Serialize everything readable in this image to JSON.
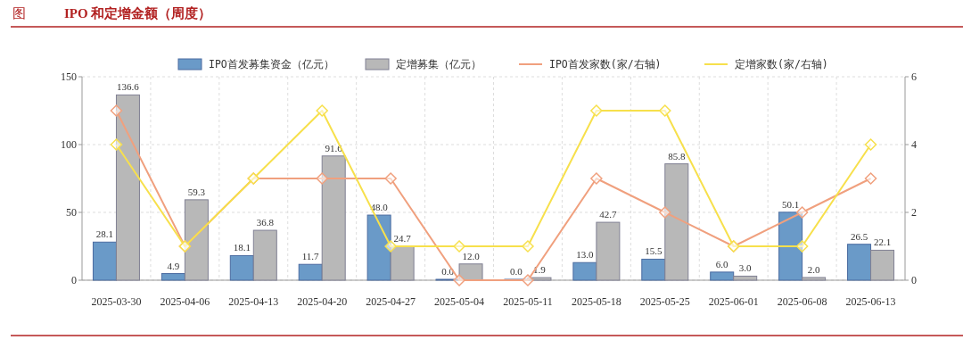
{
  "chart_data": {
    "type": "bar",
    "title": "IPO 和定增金额（周度）",
    "annotations": [
      "图"
    ],
    "categories": [
      "2025-03-30",
      "2025-04-06",
      "2025-04-13",
      "2025-04-20",
      "2025-04-27",
      "2025-05-04",
      "2025-05-11",
      "2025-05-18",
      "2025-05-25",
      "2025-06-01",
      "2025-06-08",
      "2025-06-13"
    ],
    "series": [
      {
        "name": "IPO首发募集资金（亿元）",
        "color": "#6a9ac8",
        "values": [
          28.1,
          4.9,
          18.1,
          11.7,
          48.0,
          0.0,
          0.0,
          13.0,
          15.5,
          6.0,
          50.1,
          26.5
        ],
        "value_labels": [
          "28.1",
          "4.9",
          "18.1",
          "11.7",
          "48.0",
          "0.0",
          "0.0",
          "13.0",
          "15.5",
          "6.0",
          "50.1",
          "26.5"
        ]
      },
      {
        "name": "定增募集（亿元）",
        "color": "#b8b8b8",
        "values": [
          136.6,
          59.3,
          36.8,
          91.6,
          24.7,
          12.0,
          1.9,
          42.7,
          85.8,
          3.0,
          2.0,
          22.1
        ],
        "value_labels": [
          "136.6",
          "59.3",
          "36.8",
          "91.6",
          "24.7",
          "12.0",
          "1.9",
          "42.7",
          "85.8",
          "3.0",
          "2.0",
          "22.1"
        ]
      },
      {
        "name": "IPO首发家数(家/右轴)",
        "type": "line",
        "axis": "y2",
        "color": "#f0a07e",
        "values": [
          5,
          1,
          3,
          3,
          3,
          0,
          0,
          3,
          2,
          1,
          2,
          3
        ]
      },
      {
        "name": "定增家数(家/右轴)",
        "type": "line",
        "axis": "y2",
        "color": "#f7e04c",
        "values": [
          4,
          1,
          3,
          5,
          1,
          1,
          1,
          5,
          5,
          1,
          1,
          4
        ]
      }
    ],
    "ylim": [
      0,
      150
    ],
    "yticks": [
      0,
      50,
      100,
      150
    ],
    "y2lim": [
      0,
      6
    ],
    "y2ticks": [
      0,
      2,
      4,
      6
    ],
    "grid": true,
    "legend": "top",
    "marker": "diamond"
  }
}
